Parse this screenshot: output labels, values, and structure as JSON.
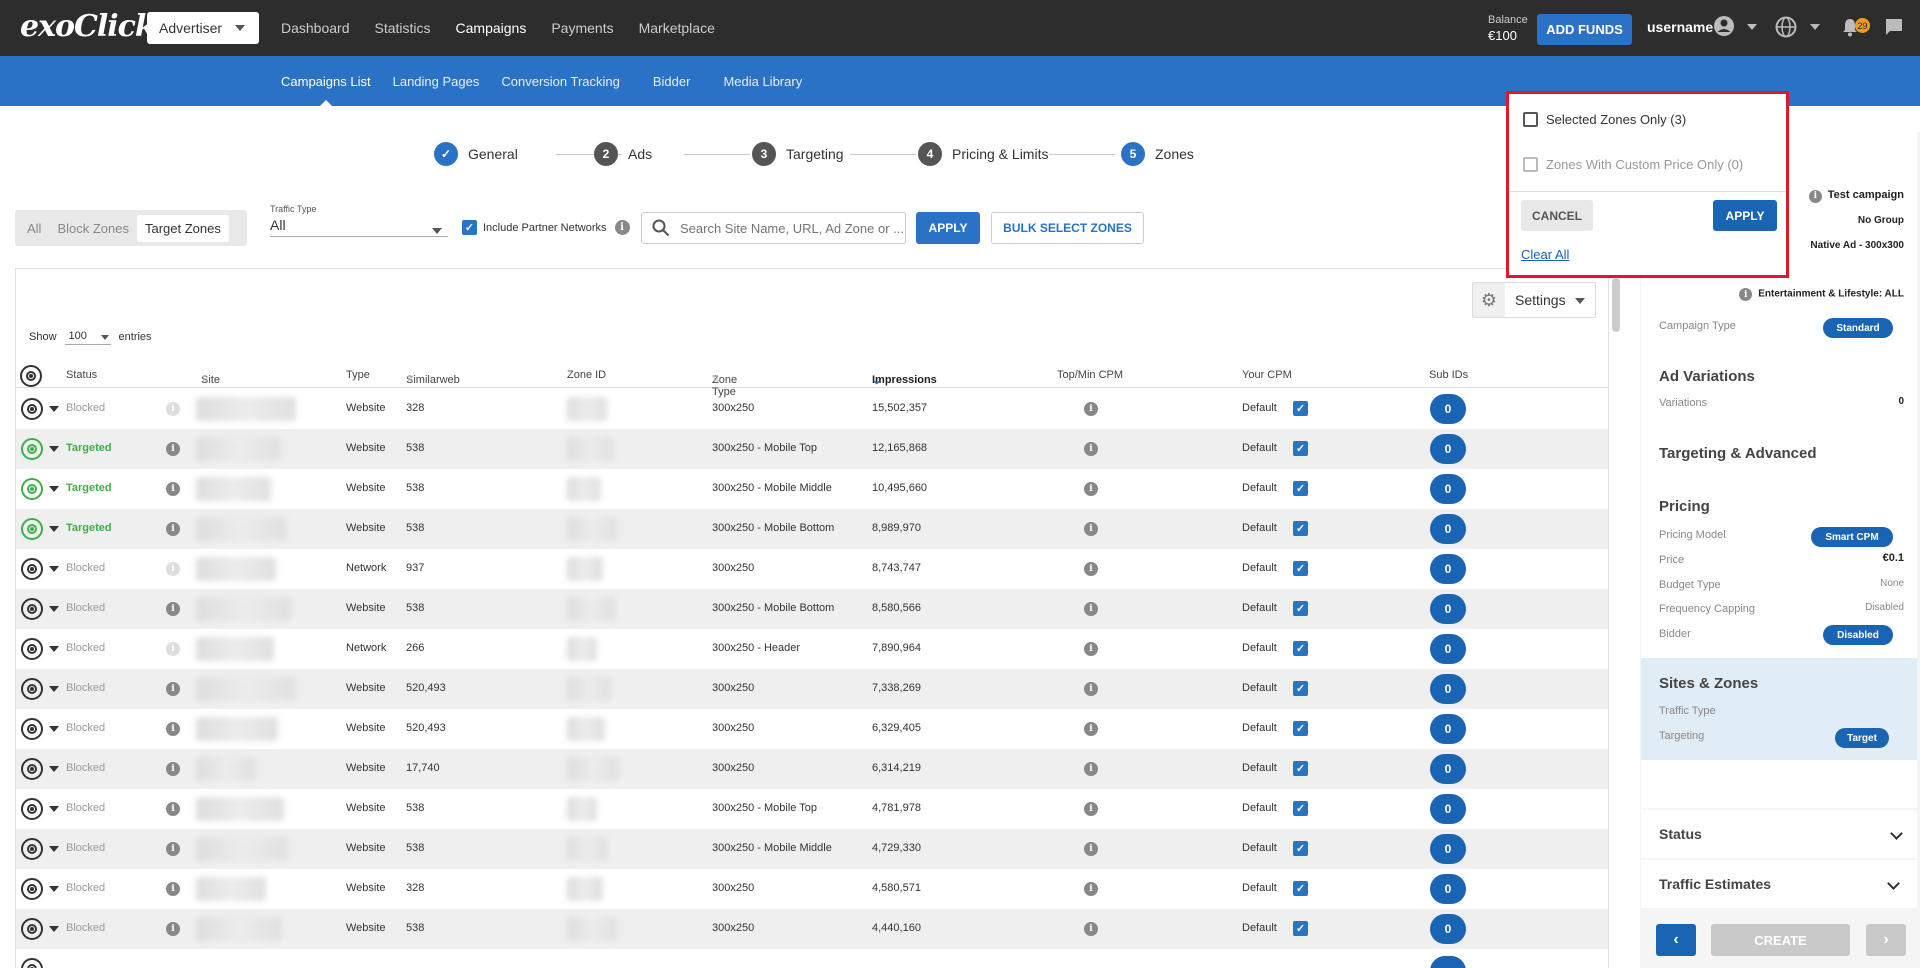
{
  "header": {
    "logo": "exoClick",
    "role": "Advertiser",
    "nav": [
      "Dashboard",
      "Statistics",
      "Campaigns",
      "Payments",
      "Marketplace"
    ],
    "balance_label": "Balance",
    "balance_value": "€100",
    "add_funds": "ADD FUNDS",
    "username": "username",
    "notifications": "29"
  },
  "subnav": [
    "Campaigns List",
    "Landing Pages",
    "Conversion Tracking",
    "Bidder",
    "Media Library"
  ],
  "steps": [
    {
      "num": "✓",
      "label": "General"
    },
    {
      "num": "2",
      "label": "Ads"
    },
    {
      "num": "3",
      "label": "Targeting"
    },
    {
      "num": "4",
      "label": "Pricing & Limits"
    },
    {
      "num": "5",
      "label": "Zones"
    }
  ],
  "filters": {
    "tabs": [
      "All",
      "Block Zones",
      "Target Zones"
    ],
    "traffic_type_label": "Traffic Type",
    "traffic_type_value": "All",
    "include_partner": "Include Partner Networks",
    "search_placeholder": "Search Site Name, URL, Ad Zone or ...",
    "apply": "APPLY",
    "bulk": "BULK SELECT ZONES"
  },
  "table": {
    "settings": "Settings",
    "show": "Show",
    "entries_value": "100",
    "entries": "entries",
    "columns": [
      "Status",
      "Site",
      "Type",
      "Similarweb",
      "Zone ID",
      "Zone Type",
      "Impressions",
      "Top/Min CPM",
      "Your CPM",
      "Sub IDs"
    ],
    "rows": [
      {
        "status": "Blocked",
        "type": "Website",
        "similarweb": "328",
        "zone_type": "300x250",
        "impressions": "15,502,357",
        "cpm": "Default",
        "subids": "0"
      },
      {
        "status": "Targeted",
        "type": "Website",
        "similarweb": "538",
        "zone_type": "300x250 - Mobile Top",
        "impressions": "12,165,868",
        "cpm": "Default",
        "subids": "0"
      },
      {
        "status": "Targeted",
        "type": "Website",
        "similarweb": "538",
        "zone_type": "300x250 - Mobile Middle",
        "impressions": "10,495,660",
        "cpm": "Default",
        "subids": "0"
      },
      {
        "status": "Targeted",
        "type": "Website",
        "similarweb": "538",
        "zone_type": "300x250 - Mobile Bottom",
        "impressions": "8,989,970",
        "cpm": "Default",
        "subids": "0"
      },
      {
        "status": "Blocked",
        "type": "Network",
        "similarweb": "937",
        "zone_type": "300x250",
        "impressions": "8,743,747",
        "cpm": "Default",
        "subids": "0"
      },
      {
        "status": "Blocked",
        "type": "Website",
        "similarweb": "538",
        "zone_type": "300x250 - Mobile Bottom",
        "impressions": "8,580,566",
        "cpm": "Default",
        "subids": "0"
      },
      {
        "status": "Blocked",
        "type": "Network",
        "similarweb": "266",
        "zone_type": "300x250 - Header",
        "impressions": "7,890,964",
        "cpm": "Default",
        "subids": "0"
      },
      {
        "status": "Blocked",
        "type": "Website",
        "similarweb": "520,493",
        "zone_type": "300x250",
        "impressions": "7,338,269",
        "cpm": "Default",
        "subids": "0"
      },
      {
        "status": "Blocked",
        "type": "Website",
        "similarweb": "520,493",
        "zone_type": "300x250",
        "impressions": "6,329,405",
        "cpm": "Default",
        "subids": "0"
      },
      {
        "status": "Blocked",
        "type": "Website",
        "similarweb": "17,740",
        "zone_type": "300x250",
        "impressions": "6,314,219",
        "cpm": "Default",
        "subids": "0"
      },
      {
        "status": "Blocked",
        "type": "Website",
        "similarweb": "538",
        "zone_type": "300x250 - Mobile Top",
        "impressions": "4,781,978",
        "cpm": "Default",
        "subids": "0"
      },
      {
        "status": "Blocked",
        "type": "Website",
        "similarweb": "538",
        "zone_type": "300x250 - Mobile Middle",
        "impressions": "4,729,330",
        "cpm": "Default",
        "subids": "0"
      },
      {
        "status": "Blocked",
        "type": "Website",
        "similarweb": "328",
        "zone_type": "300x250",
        "impressions": "4,580,571",
        "cpm": "Default",
        "subids": "0"
      },
      {
        "status": "Blocked",
        "type": "Website",
        "similarweb": "538",
        "zone_type": "300x250",
        "impressions": "4,440,160",
        "cpm": "Default",
        "subids": "0"
      }
    ]
  },
  "summary": {
    "campaign_name": "Test campaign",
    "group": "No Group",
    "ad_format": "Native Ad - 300x300",
    "category": "Entertainment & Lifestyle: ALL",
    "campaign_type_label": "Campaign Type",
    "campaign_type": "Standard",
    "ad_variations": "Ad Variations",
    "variations_label": "Variations",
    "variations_value": "0",
    "targeting_advanced": "Targeting & Advanced",
    "pricing": "Pricing",
    "pricing_model_label": "Pricing Model",
    "pricing_model": "Smart CPM",
    "price_label": "Price",
    "price": "€0.1",
    "budget_type_label": "Budget Type",
    "budget_type": "None",
    "frequency_label": "Frequency Capping",
    "frequency": "Disabled",
    "bidder_label": "Bidder",
    "bidder": "Disabled",
    "sites_zones": "Sites & Zones",
    "traffic_type_label": "Traffic Type",
    "targeting_label": "Targeting",
    "targeting": "Target",
    "status": "Status",
    "traffic_estimates": "Traffic Estimates",
    "create": "CREATE"
  },
  "popup": {
    "selected_zones": "Selected Zones Only (3)",
    "custom_price": "Zones With Custom Price Only (0)",
    "cancel": "CANCEL",
    "apply": "APPLY",
    "clear_all": "Clear All"
  }
}
